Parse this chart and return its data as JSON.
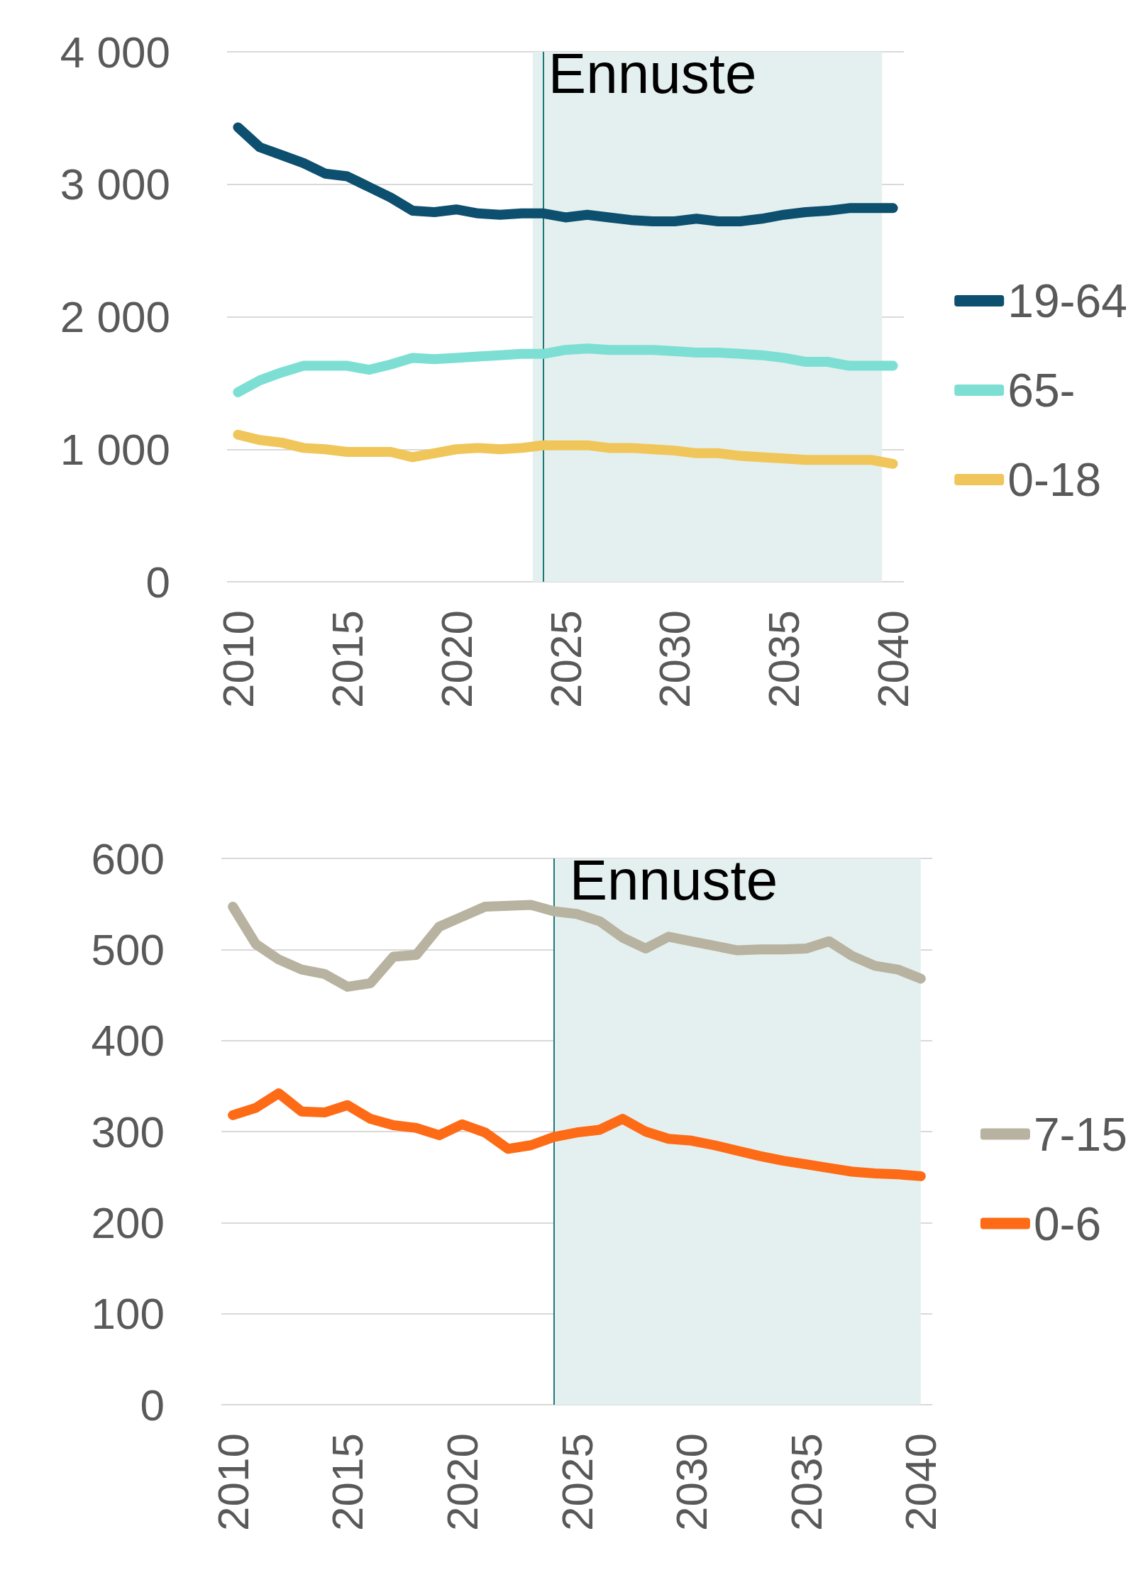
{
  "chart_data": [
    {
      "type": "line",
      "x": [
        2010,
        2011,
        2012,
        2013,
        2014,
        2015,
        2016,
        2017,
        2018,
        2019,
        2020,
        2021,
        2022,
        2023,
        2024,
        2025,
        2026,
        2027,
        2028,
        2029,
        2030,
        2031,
        2032,
        2033,
        2034,
        2035,
        2036,
        2037,
        2038,
        2039,
        2040
      ],
      "series": [
        {
          "name": "19-64",
          "color": "#0d4f6e",
          "values": [
            3430,
            3280,
            3220,
            3160,
            3080,
            3060,
            2980,
            2900,
            2800,
            2790,
            2810,
            2780,
            2770,
            2780,
            2780,
            2750,
            2770,
            2750,
            2730,
            2720,
            2720,
            2740,
            2720,
            2720,
            2740,
            2770,
            2790,
            2800,
            2820,
            2820,
            2820
          ]
        },
        {
          "name": "65-",
          "color": "#7ddfd3",
          "values": [
            1430,
            1520,
            1580,
            1630,
            1630,
            1630,
            1600,
            1640,
            1690,
            1680,
            1690,
            1700,
            1710,
            1720,
            1720,
            1750,
            1760,
            1750,
            1750,
            1750,
            1740,
            1730,
            1730,
            1720,
            1710,
            1690,
            1660,
            1660,
            1630,
            1630,
            1630
          ]
        },
        {
          "name": "0-18",
          "color": "#f0c65a",
          "values": [
            1110,
            1070,
            1050,
            1010,
            1000,
            980,
            980,
            980,
            940,
            970,
            1000,
            1010,
            1000,
            1010,
            1030,
            1030,
            1030,
            1010,
            1010,
            1000,
            990,
            970,
            970,
            950,
            940,
            930,
            920,
            920,
            920,
            920,
            890
          ]
        }
      ],
      "xlim": [
        2009.5,
        2040.5
      ],
      "xticks": [
        2010,
        2015,
        2020,
        2025,
        2030,
        2035,
        2040
      ],
      "ylim": [
        0,
        4000
      ],
      "yticks": [
        0,
        {
          "value": 1000,
          "label": "1 000"
        },
        {
          "value": 2000,
          "label": "2 000"
        },
        {
          "value": 3000,
          "label": "3 000"
        },
        {
          "value": 4000,
          "label": "4 000"
        }
      ],
      "grid": "y",
      "legend": "right",
      "line_style": "solid",
      "ref_lines": [
        {
          "axis": "x",
          "value": 2024,
          "color": "#1a7a78"
        }
      ],
      "bands": [
        {
          "axis": "x",
          "from": 2023.5,
          "to": 2039.5,
          "label": "Ennuste",
          "color": "#e4f0ef"
        }
      ]
    },
    {
      "type": "line",
      "x": [
        2010,
        2011,
        2012,
        2013,
        2014,
        2015,
        2016,
        2017,
        2018,
        2019,
        2020,
        2021,
        2022,
        2023,
        2024,
        2025,
        2026,
        2027,
        2028,
        2029,
        2030,
        2031,
        2032,
        2033,
        2034,
        2035,
        2036,
        2037,
        2038,
        2039,
        2040
      ],
      "series": [
        {
          "name": "7-15",
          "color": "#b8b3a0",
          "values": [
            547,
            506,
            489,
            478,
            473,
            459,
            463,
            492,
            494,
            525,
            536,
            547,
            548,
            549,
            542,
            539,
            531,
            513,
            501,
            514,
            509,
            504,
            499,
            500,
            500,
            501,
            509,
            493,
            482,
            478,
            468
          ]
        },
        {
          "name": "0-6",
          "color": "#fe6b16",
          "values": [
            318,
            326,
            342,
            322,
            321,
            329,
            314,
            307,
            304,
            296,
            308,
            299,
            281,
            285,
            294,
            299,
            302,
            314,
            300,
            292,
            290,
            285,
            279,
            273,
            268,
            264,
            260,
            256,
            254,
            253,
            251
          ]
        }
      ],
      "xlim": [
        2009.5,
        2040.5
      ],
      "xticks": [
        2010,
        2015,
        2020,
        2025,
        2030,
        2035,
        2040
      ],
      "ylim": [
        0,
        600
      ],
      "yticks": [
        0,
        100,
        200,
        300,
        400,
        500,
        600
      ],
      "grid": "y",
      "legend": "right",
      "line_style": "solid",
      "ref_lines": [
        {
          "axis": "x",
          "value": 2024,
          "color": "#1a7a78"
        }
      ],
      "bands": [
        {
          "axis": "x",
          "from": 2024,
          "to": 2040,
          "label": "Ennuste",
          "color": "#e4f0ef"
        }
      ]
    }
  ]
}
